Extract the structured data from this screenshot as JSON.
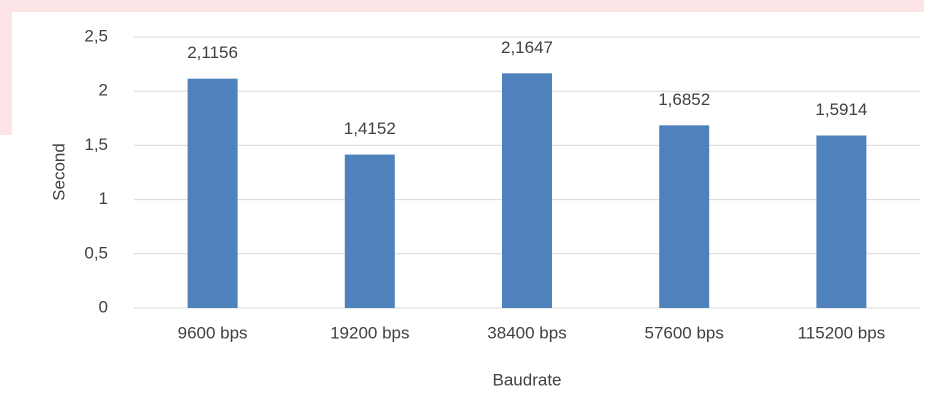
{
  "chart_data": {
    "type": "bar",
    "x_label": "Baudrate",
    "y_label": "Second",
    "categories": [
      "9600 bps",
      "19200 bps",
      "38400 bps",
      "57600 bps",
      "115200 bps"
    ],
    "values": [
      2.1156,
      1.4152,
      2.1647,
      1.6852,
      1.5914
    ],
    "value_labels": [
      "2,1156",
      "1,4152",
      "2,1647",
      "1,6852",
      "1,5914"
    ],
    "color": "#4f81bd",
    "ylim": [
      0,
      2.5
    ],
    "yticks": [
      0,
      {
        "value": 0.5,
        "label": "0,5"
      },
      1,
      {
        "value": 1.5,
        "label": "1,5"
      },
      2,
      {
        "value": 2.5,
        "label": "2,5"
      }
    ],
    "grid": true
  }
}
